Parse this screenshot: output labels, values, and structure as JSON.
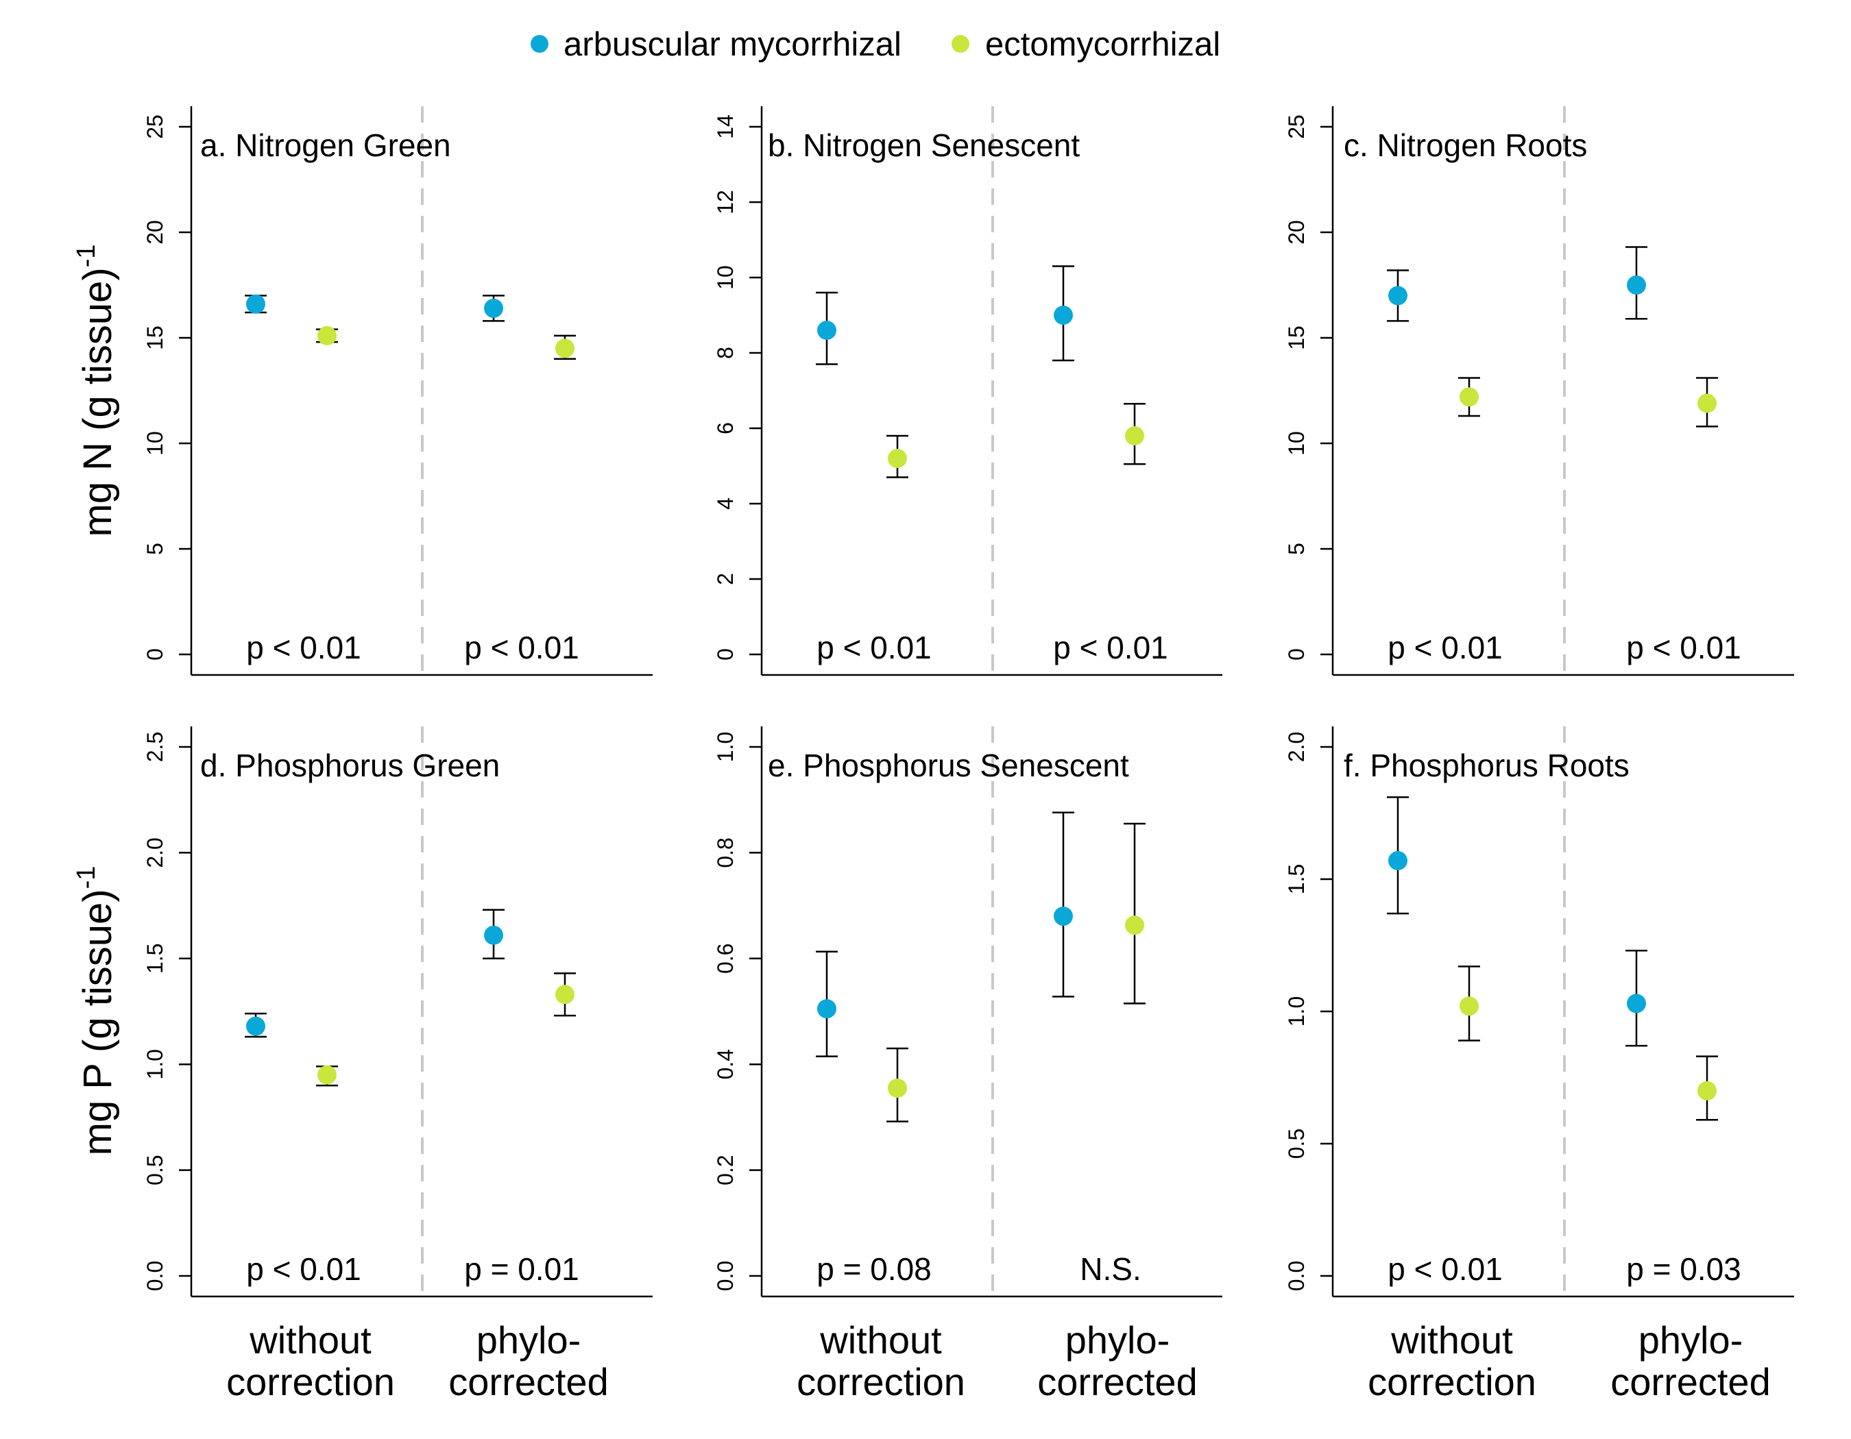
{
  "legend": {
    "items": [
      {
        "label": "arbuscular mycorrhizal",
        "color": "#0aa8d8"
      },
      {
        "label": "ectomycorrhizal",
        "color": "#c8e63c"
      }
    ]
  },
  "y_labels": {
    "row1": {
      "base": "mg N (g tissue)",
      "sup": "-1"
    },
    "row2": {
      "base": "mg P (g tissue)",
      "sup": "-1"
    }
  },
  "x_groups": [
    {
      "line1": "without",
      "line2": "correction"
    },
    {
      "line1": "phylo-",
      "line2": "corrected"
    }
  ],
  "chart_data": [
    {
      "type": "scatter",
      "title": "a. Nitrogen Green",
      "ylim": [
        0,
        25
      ],
      "yticks": [
        0,
        5,
        10,
        15,
        20,
        25
      ],
      "series": [
        {
          "name": "arbuscular mycorrhizal",
          "values": [
            16.6,
            16.4
          ],
          "ci_low": [
            16.2,
            15.8
          ],
          "ci_high": [
            17.0,
            17.0
          ]
        },
        {
          "name": "ectomycorrhizal",
          "values": [
            15.1,
            14.5
          ],
          "ci_low": [
            14.8,
            14.0
          ],
          "ci_high": [
            15.4,
            15.1
          ]
        }
      ],
      "pvalues": [
        "p < 0.01",
        "p < 0.01"
      ]
    },
    {
      "type": "scatter",
      "title": "b. Nitrogen Senescent",
      "ylim": [
        0,
        14
      ],
      "yticks": [
        0,
        2,
        4,
        6,
        8,
        10,
        12,
        14
      ],
      "series": [
        {
          "name": "arbuscular mycorrhizal",
          "values": [
            8.6,
            9.0
          ],
          "ci_low": [
            7.7,
            7.8
          ],
          "ci_high": [
            9.6,
            10.3
          ]
        },
        {
          "name": "ectomycorrhizal",
          "values": [
            5.2,
            5.8
          ],
          "ci_low": [
            4.7,
            5.05
          ],
          "ci_high": [
            5.8,
            6.65
          ]
        }
      ],
      "pvalues": [
        "p < 0.01",
        "p < 0.01"
      ]
    },
    {
      "type": "scatter",
      "title": "c. Nitrogen Roots",
      "ylim": [
        0,
        25
      ],
      "yticks": [
        0,
        5,
        10,
        15,
        20,
        25
      ],
      "series": [
        {
          "name": "arbuscular mycorrhizal",
          "values": [
            17.0,
            17.5
          ],
          "ci_low": [
            15.8,
            15.9
          ],
          "ci_high": [
            18.2,
            19.3
          ]
        },
        {
          "name": "ectomycorrhizal",
          "values": [
            12.2,
            11.9
          ],
          "ci_low": [
            11.3,
            10.8
          ],
          "ci_high": [
            13.1,
            13.1
          ]
        }
      ],
      "pvalues": [
        "p < 0.01",
        "p < 0.01"
      ]
    },
    {
      "type": "scatter",
      "title": "d. Phosphorus Green",
      "ylim": [
        0,
        2.5
      ],
      "yticks": [
        0.0,
        0.5,
        1.0,
        1.5,
        2.0,
        2.5
      ],
      "series": [
        {
          "name": "arbuscular mycorrhizal",
          "values": [
            1.18,
            1.61
          ],
          "ci_low": [
            1.13,
            1.5
          ],
          "ci_high": [
            1.24,
            1.73
          ]
        },
        {
          "name": "ectomycorrhizal",
          "values": [
            0.95,
            1.33
          ],
          "ci_low": [
            0.9,
            1.23
          ],
          "ci_high": [
            0.99,
            1.43
          ]
        }
      ],
      "pvalues": [
        "p < 0.01",
        "p = 0.01"
      ]
    },
    {
      "type": "scatter",
      "title": "e. Phosphorus Senescent",
      "ylim": [
        0,
        1.0
      ],
      "yticks": [
        0.0,
        0.2,
        0.4,
        0.6,
        0.8,
        1.0
      ],
      "series": [
        {
          "name": "arbuscular mycorrhizal",
          "values": [
            0.505,
            0.68
          ],
          "ci_low": [
            0.415,
            0.528
          ],
          "ci_high": [
            0.613,
            0.876
          ]
        },
        {
          "name": "ectomycorrhizal",
          "values": [
            0.355,
            0.663
          ],
          "ci_low": [
            0.292,
            0.515
          ],
          "ci_high": [
            0.43,
            0.855
          ]
        }
      ],
      "pvalues": [
        "p = 0.08",
        "N.S."
      ]
    },
    {
      "type": "scatter",
      "title": "f. Phosphorus Roots",
      "ylim": [
        0,
        2.0
      ],
      "yticks": [
        0.0,
        0.5,
        1.0,
        1.5,
        2.0
      ],
      "series": [
        {
          "name": "arbuscular mycorrhizal",
          "values": [
            1.57,
            1.03
          ],
          "ci_low": [
            1.37,
            0.87
          ],
          "ci_high": [
            1.81,
            1.23
          ]
        },
        {
          "name": "ectomycorrhizal",
          "values": [
            1.02,
            0.7
          ],
          "ci_low": [
            0.89,
            0.59
          ],
          "ci_high": [
            1.17,
            0.83
          ]
        }
      ],
      "pvalues": [
        "p < 0.01",
        "p = 0.03"
      ]
    }
  ]
}
